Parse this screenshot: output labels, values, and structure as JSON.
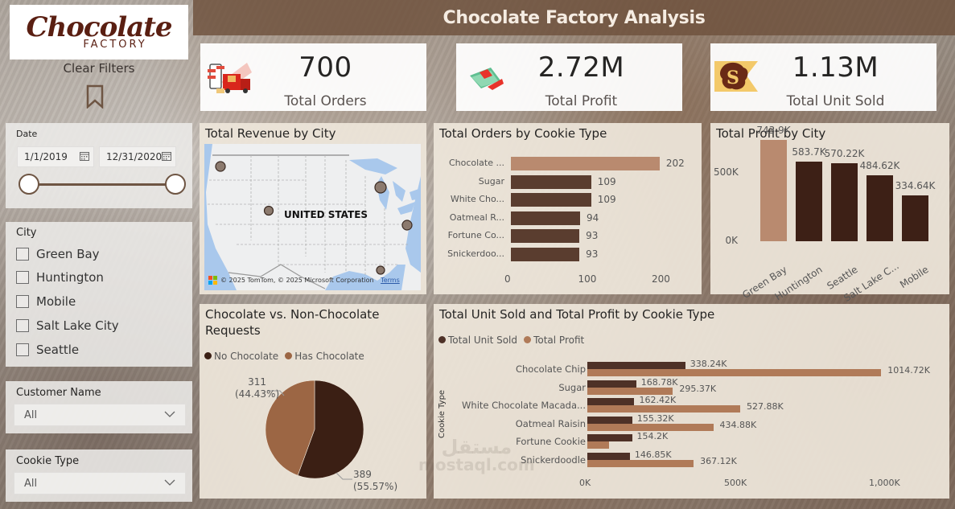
{
  "app": {
    "logo": {
      "script": "Chocolate",
      "sub": "FACTORY"
    },
    "title": "Chocolate Factory Analysis",
    "clear_filters": "Clear Filters"
  },
  "kpis": [
    {
      "value": "700",
      "label": "Total Orders",
      "icon": "delivery-truck-icon"
    },
    {
      "value": "2.72M",
      "label": "Total Profit",
      "icon": "money-icon"
    },
    {
      "value": "1.13M",
      "label": "Total Unit Sold",
      "icon": "dollar-splash-icon"
    }
  ],
  "filters": {
    "date": {
      "title": "Date",
      "start": "1/1/2019",
      "end": "12/31/2020"
    },
    "city": {
      "title": "City",
      "options": [
        "Green Bay",
        "Huntington",
        "Mobile",
        "Salt Lake City",
        "Seattle"
      ]
    },
    "customer_name": {
      "title": "Customer Name",
      "value": "All"
    },
    "cookie_type": {
      "title": "Cookie Type",
      "value": "All"
    }
  },
  "map": {
    "title": "Total Revenue by City",
    "country_label": "UNITED STATES",
    "attribution": "© 2025 TomTom, © 2025 Microsoft Corporation",
    "terms": "Terms",
    "bubble_color": "#8c7a6e"
  },
  "colors": {
    "highlight": "#b98a6f",
    "dark_brown": "#5a3d2f",
    "darker_brown": "#3d2016",
    "profit_brown": "#b07a58",
    "pie_has": "#9c6644",
    "pie_no": "#3b1f14",
    "header_bg": "#6e503c"
  },
  "chart_data": [
    {
      "type": "bar",
      "orientation": "horizontal",
      "title": "Total Orders by Cookie Type",
      "categories": [
        "Chocolate ...",
        "Sugar",
        "White Cho...",
        "Oatmeal R...",
        "Fortune Co...",
        "Snickerdoo..."
      ],
      "values": [
        202,
        109,
        109,
        94,
        93,
        93
      ],
      "value_labels": [
        "202",
        "109",
        "109",
        "94",
        "93",
        "93"
      ],
      "xticks": [
        "0",
        "100",
        "200"
      ],
      "xlim": [
        0,
        220
      ]
    },
    {
      "type": "bar",
      "orientation": "vertical",
      "title": "Total Profit by City",
      "categories": [
        "Green Bay",
        "Huntington",
        "Seattle",
        "Salt Lake C...",
        "Mobile"
      ],
      "values": [
        743900,
        583700,
        570220,
        484620,
        334640
      ],
      "value_labels": [
        "743.9K",
        "583.7K",
        "570.22K",
        "484.62K",
        "334.64K"
      ],
      "yticks": [
        "0K",
        "500K"
      ],
      "ylim": [
        0,
        800000
      ]
    },
    {
      "type": "pie",
      "title_line1": "Chocolate vs. Non-Chocolate",
      "title_line2": "Requests",
      "legend": [
        "No Chocolate",
        "Has Chocolate"
      ],
      "slices": [
        {
          "name": "No Chocolate",
          "value": 389,
          "percent": "55.57%",
          "label": "389",
          "pct_label": "(55.57%)"
        },
        {
          "name": "Has Chocolate",
          "value": 311,
          "percent": "44.43%",
          "label": "311",
          "pct_label": "(44.43%)"
        }
      ]
    },
    {
      "type": "bar",
      "orientation": "horizontal",
      "title": "Total Unit Sold and Total Profit by Cookie Type",
      "ylabel": "Cookie Type",
      "legend": [
        "Total Unit Sold",
        "Total Profit"
      ],
      "categories": [
        "Chocolate Chip",
        "Sugar",
        "White Chocolate Macada...",
        "Oatmeal Raisin",
        "Fortune Cookie",
        "Snickerdoodle"
      ],
      "series": [
        {
          "name": "Total Unit Sold",
          "values": [
            338240,
            168780,
            162420,
            155320,
            154200,
            146850
          ],
          "labels": [
            "338.24K",
            "168.78K",
            "162.42K",
            "155.32K",
            "154.2K",
            "146.85K"
          ]
        },
        {
          "name": "Total Profit",
          "values": [
            1014720,
            295370,
            527880,
            434880,
            75000,
            367120
          ],
          "labels": [
            "1014.72K",
            "295.37K",
            "527.88K",
            "434.88K",
            "",
            "367.12K"
          ]
        }
      ],
      "xticks": [
        "0K",
        "500K",
        "1,000K"
      ],
      "xlim": [
        0,
        1150000
      ]
    }
  ],
  "watermark": {
    "line1": "مستقل",
    "line2": "mostaql.com"
  }
}
